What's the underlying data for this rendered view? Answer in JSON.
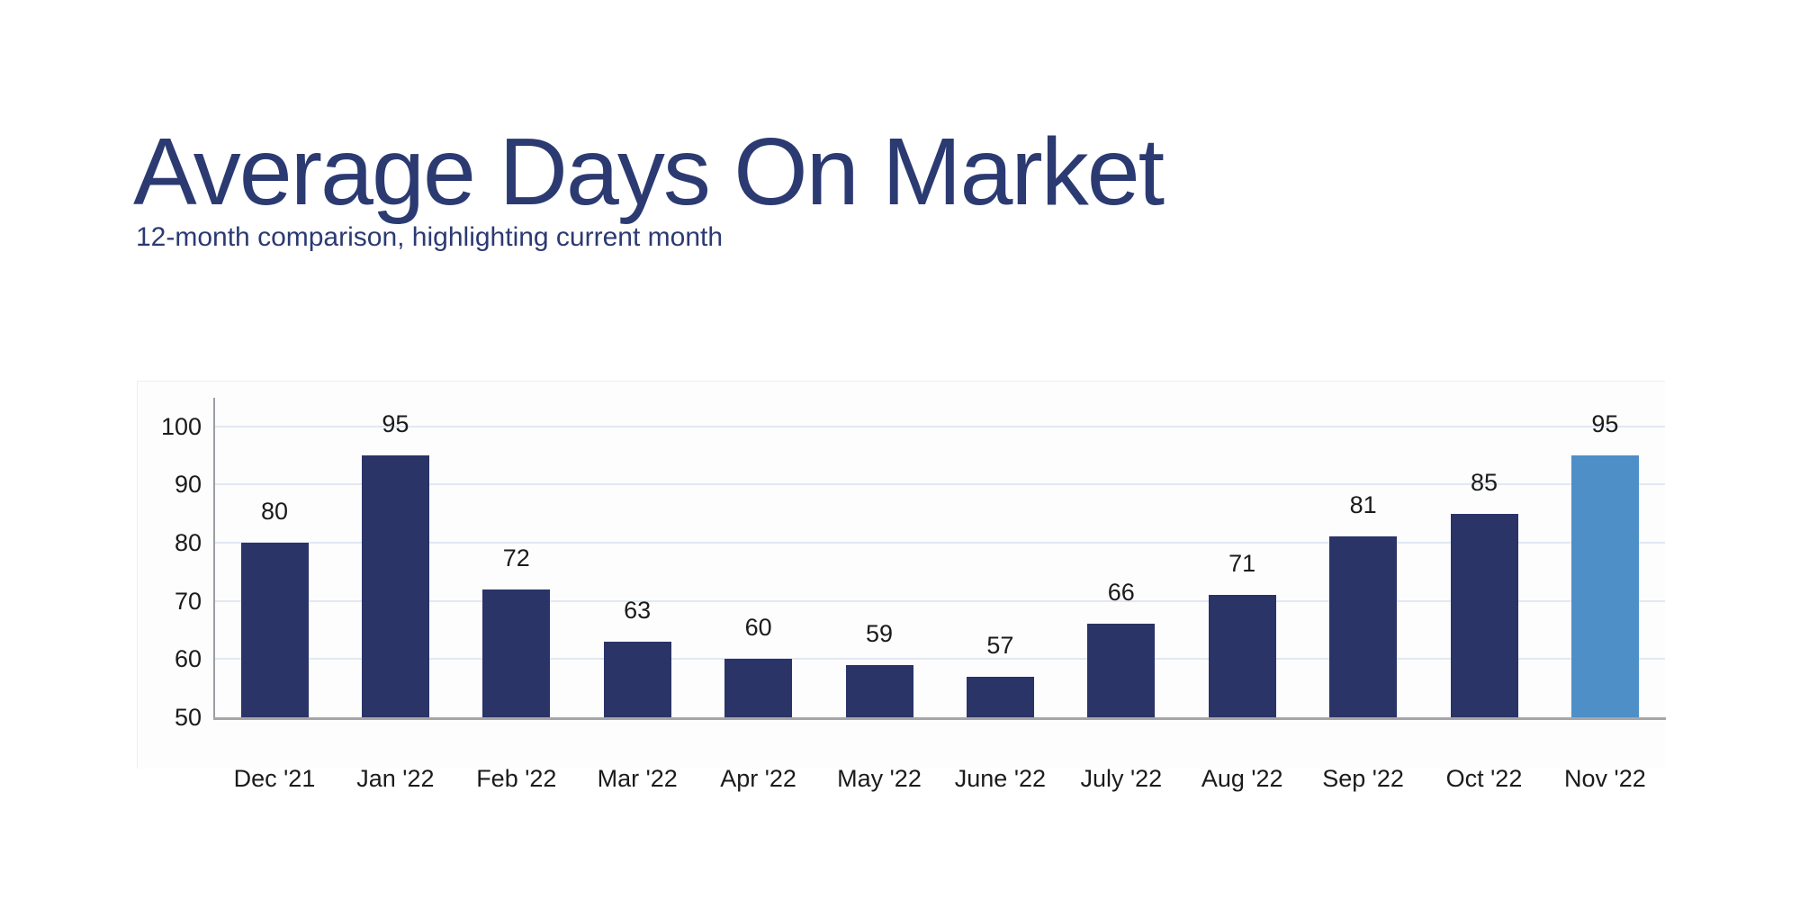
{
  "page": {
    "title": "Average Days On Market",
    "subtitle": "12-month comparison, highlighting current month"
  },
  "colors": {
    "title_text": "#2c3a72",
    "subtitle_text": "#2c3a72",
    "bar_default": "#2a3467",
    "bar_highlight": "#4e8fc8",
    "gridline": "#e1e8f2",
    "y_axis_line": "#9c9ea3",
    "x_axis_line": "#a6a6a8",
    "label_text": "#1b1b1b",
    "background": "#ffffff"
  },
  "chart_data": {
    "type": "bar",
    "title": "Average Days On Market",
    "subtitle": "12-month comparison, highlighting current month",
    "categories": [
      "Dec '21",
      "Jan '22",
      "Feb '22",
      "Mar '22",
      "Apr '22",
      "May '22",
      "June '22",
      "July '22",
      "Aug '22",
      "Sep '22",
      "Oct '22",
      "Nov '22"
    ],
    "values": [
      80,
      95,
      72,
      63,
      60,
      59,
      57,
      66,
      71,
      81,
      85,
      95
    ],
    "highlight_index": 11,
    "highlight_meaning": "current month",
    "xlabel": "",
    "ylabel": "",
    "ylim": [
      50,
      105
    ],
    "yticks": [
      50,
      60,
      70,
      80,
      90,
      100
    ],
    "grid": true,
    "value_labels_shown": true,
    "legend": "none"
  }
}
